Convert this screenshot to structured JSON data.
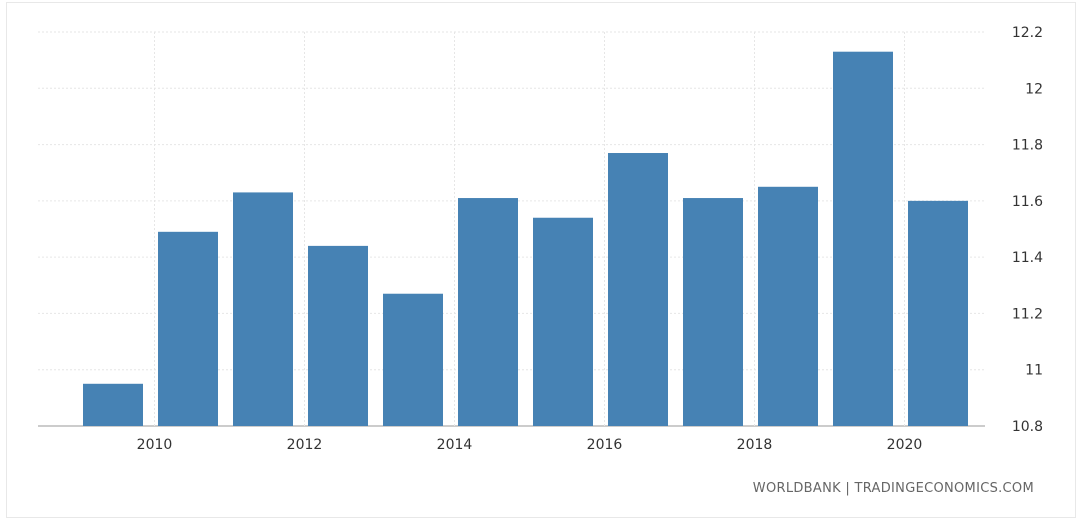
{
  "chart_data": {
    "type": "bar",
    "x": [
      2009,
      2010,
      2011,
      2012,
      2013,
      2014,
      2015,
      2016,
      2017,
      2018,
      2019,
      2020
    ],
    "values": [
      10.95,
      11.49,
      11.63,
      11.44,
      11.27,
      11.61,
      11.54,
      11.77,
      11.61,
      11.65,
      12.13,
      11.6
    ],
    "x_tick_labels": [
      "2010",
      "2012",
      "2014",
      "2016",
      "2018",
      "2020"
    ],
    "y_tick_labels": [
      "10.8",
      "11",
      "11.2",
      "11.4",
      "11.6",
      "11.8",
      "12",
      "12.2"
    ],
    "ylim": [
      10.8,
      12.2
    ],
    "y_axis_side": "right",
    "grid": true,
    "bar_color": "#4682b4",
    "title": "",
    "xlabel": "",
    "ylabel": ""
  },
  "source": {
    "left": "WORLDBANK",
    "separator": " | ",
    "right": "TRADINGECONOMICS.COM"
  }
}
